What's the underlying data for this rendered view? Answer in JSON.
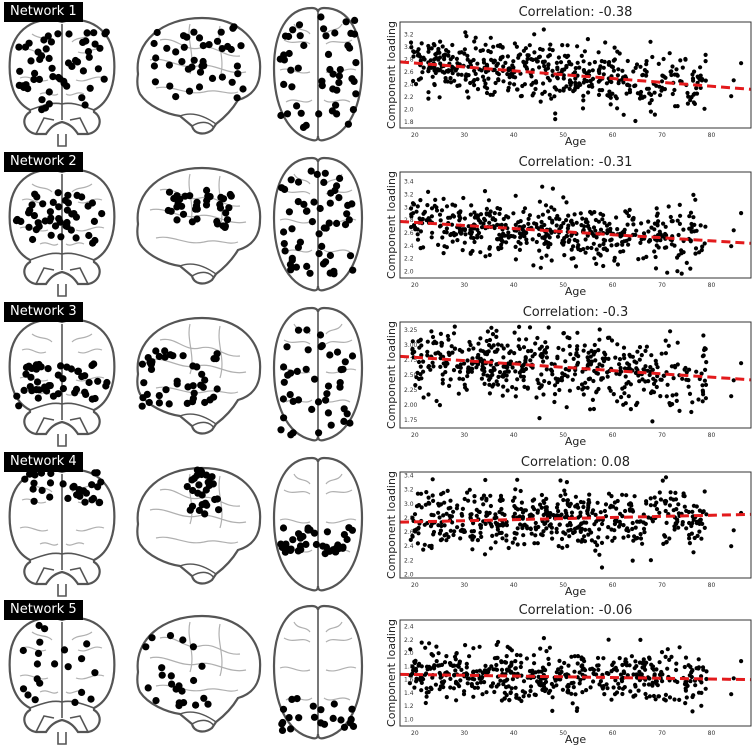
{
  "networks": [
    {
      "label": "Network 1",
      "title": "Correlation: -0.38"
    },
    {
      "label": "Network 2",
      "title": "Correlation: -0.31"
    },
    {
      "label": "Network 3",
      "title": "Correlation: -0.3"
    },
    {
      "label": "Network 4",
      "title": "Correlation: 0.08"
    },
    {
      "label": "Network 5",
      "title": "Correlation: -0.06"
    }
  ],
  "colors": {
    "points": "#000000",
    "fit_line": "#e31a1c",
    "brain_outline": "#555555",
    "brain_sulci": "#b0b0b0"
  },
  "chart_data": [
    {
      "type": "scatter",
      "title": "Correlation: -0.38",
      "xlabel": "Age",
      "ylabel": "Component loading",
      "xlim": [
        17,
        88
      ],
      "ylim": [
        1.7,
        3.4
      ],
      "xticks": [
        20,
        30,
        40,
        50,
        60,
        70,
        80
      ],
      "yticks": [
        1.8,
        2.0,
        2.2,
        2.4,
        2.6,
        2.8,
        3.0,
        3.2
      ],
      "ytick_labels": [
        "1.8",
        "2.0",
        "2.2",
        "2.4",
        "2.6",
        "2.8",
        "3.0",
        "3.2"
      ],
      "fit": {
        "x": [
          17,
          88
        ],
        "y": [
          2.76,
          2.32
        ]
      },
      "spread": 0.24,
      "grid": false,
      "legend": "none",
      "n_points": 520
    },
    {
      "type": "scatter",
      "title": "Correlation: -0.31",
      "xlabel": "Age",
      "ylabel": "Component loading",
      "xlim": [
        17,
        88
      ],
      "ylim": [
        1.9,
        3.55
      ],
      "xticks": [
        20,
        30,
        40,
        50,
        60,
        70,
        80
      ],
      "yticks": [
        2.0,
        2.2,
        2.4,
        2.6,
        2.8,
        3.0,
        3.2,
        3.4
      ],
      "ytick_labels": [
        "2.0",
        "2.2",
        "2.4",
        "2.6",
        "2.8",
        "3.0",
        "3.2",
        "3.4"
      ],
      "fit": {
        "x": [
          17,
          88
        ],
        "y": [
          2.78,
          2.44
        ]
      },
      "spread": 0.22,
      "grid": false,
      "legend": "none",
      "n_points": 520
    },
    {
      "type": "scatter",
      "title": "Correlation: -0.3",
      "xlabel": "Age",
      "ylabel": "Component loading",
      "xlim": [
        17,
        88
      ],
      "ylim": [
        1.62,
        3.38
      ],
      "xticks": [
        20,
        30,
        40,
        50,
        60,
        70,
        80
      ],
      "yticks": [
        1.75,
        2.0,
        2.25,
        2.5,
        2.75,
        3.0,
        3.25
      ],
      "ytick_labels": [
        "1.75",
        "2.00",
        "2.25",
        "2.50",
        "2.75",
        "3.00",
        "3.25"
      ],
      "fit": {
        "x": [
          17,
          88
        ],
        "y": [
          2.81,
          2.42
        ]
      },
      "spread": 0.28,
      "grid": false,
      "legend": "none",
      "n_points": 520
    },
    {
      "type": "scatter",
      "title": "Correlation: 0.08",
      "xlabel": "Age",
      "ylabel": "Component loading",
      "xlim": [
        17,
        88
      ],
      "ylim": [
        1.95,
        3.45
      ],
      "xticks": [
        20,
        30,
        40,
        50,
        60,
        70,
        80
      ],
      "yticks": [
        2.0,
        2.2,
        2.4,
        2.6,
        2.8,
        3.0,
        3.2,
        3.4
      ],
      "ytick_labels": [
        "2.0",
        "2.2",
        "2.4",
        "2.6",
        "2.8",
        "3.0",
        "3.2",
        "3.4"
      ],
      "fit": {
        "x": [
          17,
          88
        ],
        "y": [
          2.74,
          2.85
        ]
      },
      "spread": 0.22,
      "grid": false,
      "legend": "none",
      "n_points": 520
    },
    {
      "type": "scatter",
      "title": "Correlation: -0.06",
      "xlabel": "Age",
      "ylabel": "Component loading",
      "xlim": [
        17,
        88
      ],
      "ylim": [
        0.9,
        2.5
      ],
      "xticks": [
        20,
        30,
        40,
        50,
        60,
        70,
        80
      ],
      "yticks": [
        1.0,
        1.2,
        1.4,
        1.6,
        1.8,
        2.0,
        2.2,
        2.4
      ],
      "ytick_labels": [
        "1.0",
        "1.2",
        "1.4",
        "1.6",
        "1.8",
        "2.0",
        "2.2",
        "2.4"
      ],
      "fit": {
        "x": [
          17,
          88
        ],
        "y": [
          1.68,
          1.6
        ]
      },
      "spread": 0.2,
      "grid": false,
      "legend": "none",
      "n_points": 520
    }
  ]
}
